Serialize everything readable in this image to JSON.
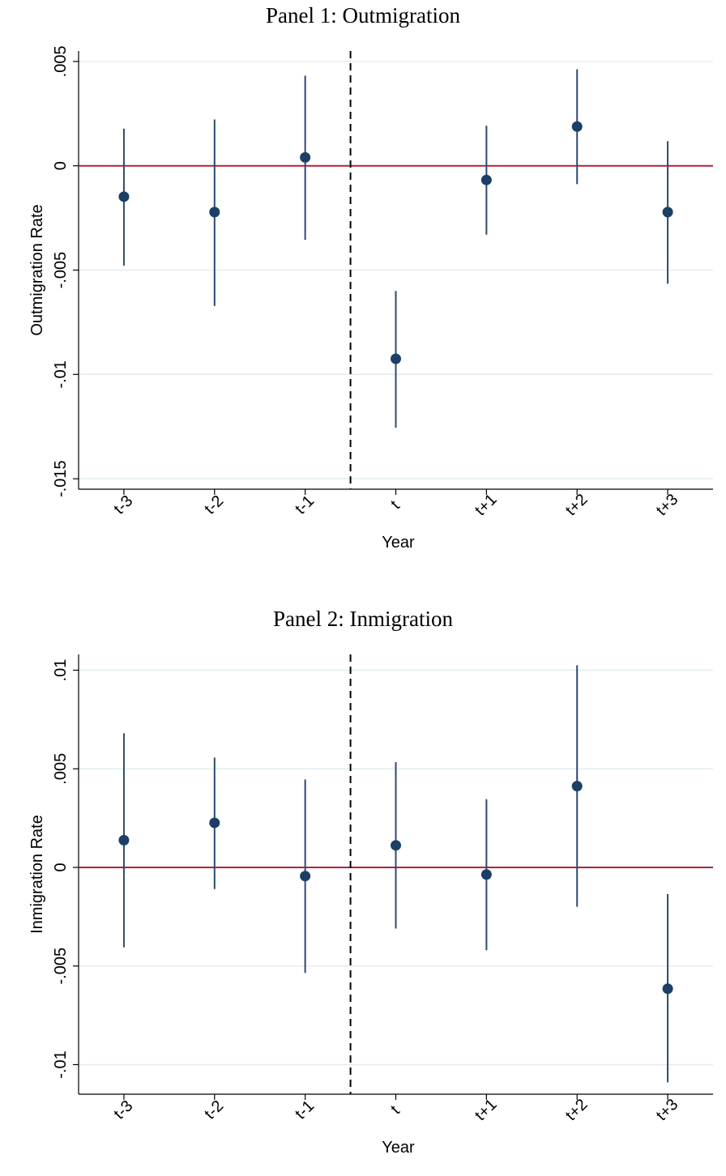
{
  "chart_data": [
    {
      "type": "scatter",
      "title": "Panel 1: Outmigration",
      "xlabel": "Year",
      "ylabel": "Outmigration Rate",
      "categories": [
        "t-3",
        "t-2",
        "t-1",
        "t",
        "t+1",
        "t+2",
        "t+3"
      ],
      "ylim": [
        -0.0155,
        0.0055
      ],
      "yticks": [
        0.005,
        0,
        -0.005,
        -0.01,
        -0.015
      ],
      "ytick_labels": [
        ".005",
        "0",
        "-.005",
        "-.01",
        "-.015"
      ],
      "series": [
        {
          "estimate": [
            -0.00148,
            -0.00222,
            0.0004,
            -0.00925,
            -0.00068,
            0.00188,
            -0.00222
          ],
          "ci_low": [
            -0.00478,
            -0.00672,
            -0.00355,
            -0.01255,
            -0.0033,
            -0.00088,
            -0.00565
          ],
          "ci_high": [
            0.00178,
            0.00222,
            0.00432,
            -0.006,
            0.00192,
            0.00462,
            0.00118
          ]
        }
      ],
      "reference_line_y": 0,
      "event_line_between": [
        "t-1",
        "t"
      ],
      "grid": true,
      "colors": {
        "marker": "#1b3f66",
        "ci": "#2c4a6e",
        "zero_line": "#b1223f",
        "grid": "#e2eef2",
        "event_line": "#000000"
      }
    },
    {
      "type": "scatter",
      "title": "Panel 2: Inmigration",
      "xlabel": "Year",
      "ylabel": "Inmigration Rate",
      "categories": [
        "t-3",
        "t-2",
        "t-1",
        "t",
        "t+1",
        "t+2",
        "t+3"
      ],
      "ylim": [
        -0.0115,
        0.0108
      ],
      "yticks": [
        0.01,
        0.005,
        0,
        -0.005,
        -0.01
      ],
      "ytick_labels": [
        ".01",
        ".005",
        "0",
        "-.005",
        "-.01"
      ],
      "series": [
        {
          "estimate": [
            0.00138,
            0.00226,
            -0.00044,
            0.00112,
            -0.00036,
            0.00412,
            -0.00615
          ],
          "ci_low": [
            -0.00405,
            -0.0011,
            -0.00535,
            -0.0031,
            -0.0042,
            -0.002,
            -0.0109
          ],
          "ci_high": [
            0.0068,
            0.00557,
            0.00446,
            0.00534,
            0.00346,
            0.01025,
            -0.00135
          ]
        }
      ],
      "reference_line_y": 0,
      "event_line_between": [
        "t-1",
        "t"
      ],
      "grid": true,
      "colors": {
        "marker": "#1b3f66",
        "ci": "#2c4a6e",
        "zero_line": "#b1223f",
        "grid": "#e2eef2",
        "event_line": "#000000"
      }
    }
  ]
}
